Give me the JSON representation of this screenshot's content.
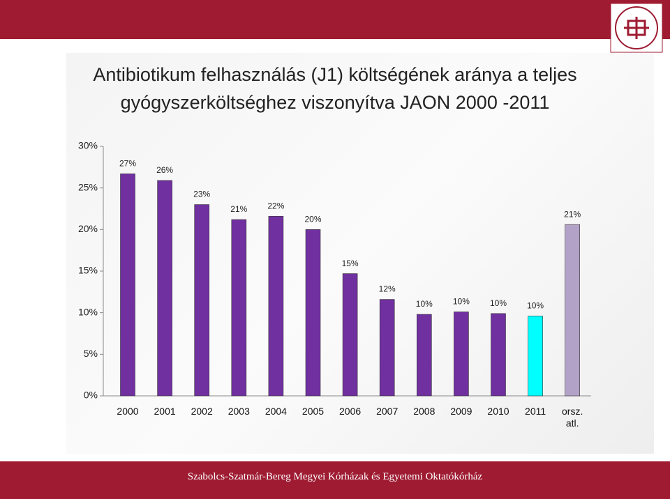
{
  "chart_data": {
    "type": "bar",
    "title": [
      "Antibiotikum felhasználás (J1) költségének aránya  a teljes",
      "gyógyszerköltséghez viszonyítva JAON 2000 -2011"
    ],
    "categories": [
      "2000",
      "2001",
      "2002",
      "2003",
      "2004",
      "2005",
      "2006",
      "2007",
      "2008",
      "2009",
      "2010",
      "2011",
      "orsz. atl."
    ],
    "values": [
      26.7,
      25.9,
      23.0,
      21.2,
      21.6,
      20.0,
      14.7,
      11.6,
      9.8,
      10.1,
      9.9,
      9.6,
      20.6
    ],
    "value_labels": [
      "27%",
      "26%",
      "23%",
      "21%",
      "22%",
      "20%",
      "15%",
      "12%",
      "10%",
      "10%",
      "10%",
      "10%",
      "21%"
    ],
    "colors": [
      "#7030a0",
      "#7030a0",
      "#7030a0",
      "#7030a0",
      "#7030a0",
      "#7030a0",
      "#7030a0",
      "#7030a0",
      "#7030a0",
      "#7030a0",
      "#7030a0",
      "#00ffff",
      "#b3a2c7"
    ],
    "ylim": [
      0,
      30
    ],
    "yticks": [
      {
        "value": 0,
        "label": "0%"
      },
      {
        "value": 5,
        "label": "5%"
      },
      {
        "value": 10,
        "label": "10%"
      },
      {
        "value": 15,
        "label": "15%"
      },
      {
        "value": 20,
        "label": "20%"
      },
      {
        "value": 25,
        "label": "25%"
      },
      {
        "value": 30,
        "label": "30%"
      }
    ],
    "grid": false
  },
  "footer": "Szabolcs-Szatmár-Bereg Megyei Kórházak és Egyetemi Oktatókórház"
}
